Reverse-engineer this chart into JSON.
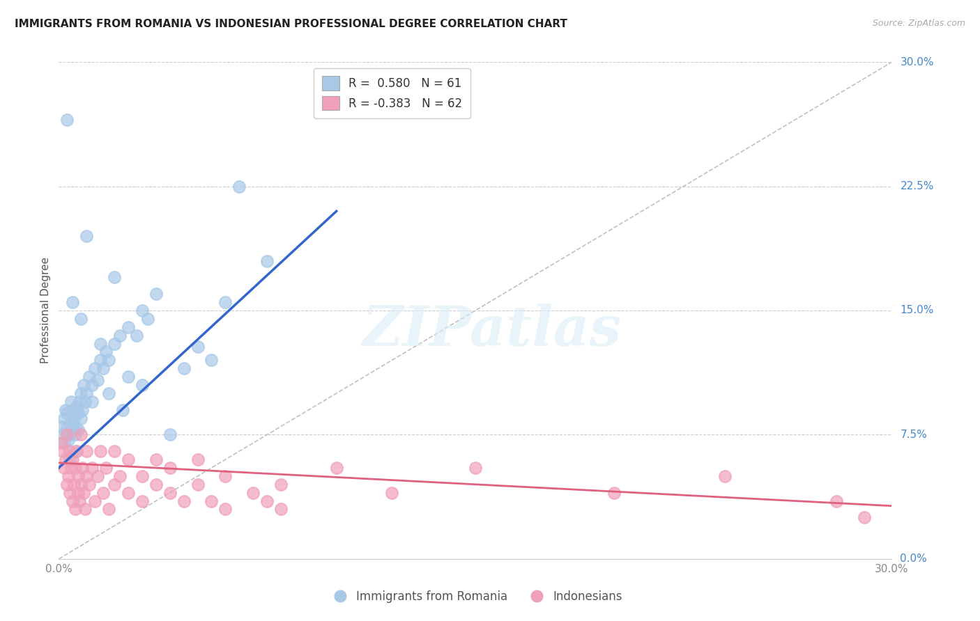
{
  "title": "IMMIGRANTS FROM ROMANIA VS INDONESIAN PROFESSIONAL DEGREE CORRELATION CHART",
  "source": "Source: ZipAtlas.com",
  "ylabel": "Professional Degree",
  "yticks_labels": [
    "0.0%",
    "7.5%",
    "15.0%",
    "22.5%",
    "30.0%"
  ],
  "ytick_vals": [
    0.0,
    7.5,
    15.0,
    22.5,
    30.0
  ],
  "xlim": [
    0.0,
    30.0
  ],
  "ylim": [
    0.0,
    30.0
  ],
  "romania_color": "#a8c8e8",
  "indonesia_color": "#f0a0b8",
  "romania_line_color": "#3366cc",
  "indonesia_line_color": "#e06080",
  "diagonal_color": "#c0c0c0",
  "watermark": "ZIPatlas",
  "romania_points": [
    [
      0.1,
      8.0
    ],
    [
      0.15,
      7.5
    ],
    [
      0.2,
      8.5
    ],
    [
      0.2,
      7.0
    ],
    [
      0.25,
      9.0
    ],
    [
      0.3,
      7.8
    ],
    [
      0.3,
      8.8
    ],
    [
      0.35,
      7.2
    ],
    [
      0.4,
      8.2
    ],
    [
      0.4,
      7.5
    ],
    [
      0.45,
      9.5
    ],
    [
      0.5,
      8.0
    ],
    [
      0.5,
      9.0
    ],
    [
      0.55,
      8.5
    ],
    [
      0.6,
      7.5
    ],
    [
      0.6,
      8.0
    ],
    [
      0.65,
      9.2
    ],
    [
      0.7,
      7.8
    ],
    [
      0.7,
      8.8
    ],
    [
      0.75,
      9.5
    ],
    [
      0.8,
      8.5
    ],
    [
      0.8,
      10.0
    ],
    [
      0.85,
      9.0
    ],
    [
      0.9,
      10.5
    ],
    [
      0.95,
      9.5
    ],
    [
      1.0,
      10.0
    ],
    [
      1.1,
      11.0
    ],
    [
      1.2,
      10.5
    ],
    [
      1.3,
      11.5
    ],
    [
      1.4,
      10.8
    ],
    [
      1.5,
      12.0
    ],
    [
      1.6,
      11.5
    ],
    [
      1.7,
      12.5
    ],
    [
      1.8,
      12.0
    ],
    [
      2.0,
      13.0
    ],
    [
      2.2,
      13.5
    ],
    [
      2.5,
      14.0
    ],
    [
      2.8,
      13.5
    ],
    [
      3.0,
      15.0
    ],
    [
      3.2,
      14.5
    ],
    [
      0.3,
      26.5
    ],
    [
      1.0,
      19.5
    ],
    [
      2.0,
      17.0
    ],
    [
      3.5,
      16.0
    ],
    [
      0.5,
      15.5
    ],
    [
      0.8,
      14.5
    ],
    [
      1.5,
      13.0
    ],
    [
      4.0,
      7.5
    ],
    [
      5.0,
      12.8
    ],
    [
      4.5,
      11.5
    ],
    [
      2.5,
      11.0
    ],
    [
      3.0,
      10.5
    ],
    [
      1.8,
      10.0
    ],
    [
      6.5,
      22.5
    ],
    [
      0.4,
      6.0
    ],
    [
      1.2,
      9.5
    ],
    [
      2.3,
      9.0
    ],
    [
      5.5,
      12.0
    ],
    [
      6.0,
      15.5
    ],
    [
      7.5,
      18.0
    ],
    [
      0.6,
      6.5
    ]
  ],
  "indonesia_points": [
    [
      0.1,
      7.0
    ],
    [
      0.15,
      6.5
    ],
    [
      0.2,
      5.5
    ],
    [
      0.25,
      6.0
    ],
    [
      0.3,
      4.5
    ],
    [
      0.3,
      7.5
    ],
    [
      0.35,
      5.0
    ],
    [
      0.4,
      6.5
    ],
    [
      0.4,
      4.0
    ],
    [
      0.45,
      5.5
    ],
    [
      0.5,
      6.0
    ],
    [
      0.5,
      3.5
    ],
    [
      0.55,
      4.5
    ],
    [
      0.6,
      5.5
    ],
    [
      0.6,
      3.0
    ],
    [
      0.65,
      6.5
    ],
    [
      0.7,
      4.0
    ],
    [
      0.7,
      5.0
    ],
    [
      0.75,
      3.5
    ],
    [
      0.8,
      4.5
    ],
    [
      0.8,
      7.5
    ],
    [
      0.85,
      5.5
    ],
    [
      0.9,
      4.0
    ],
    [
      0.95,
      3.0
    ],
    [
      1.0,
      5.0
    ],
    [
      1.0,
      6.5
    ],
    [
      1.1,
      4.5
    ],
    [
      1.2,
      5.5
    ],
    [
      1.3,
      3.5
    ],
    [
      1.4,
      5.0
    ],
    [
      1.5,
      6.5
    ],
    [
      1.6,
      4.0
    ],
    [
      1.7,
      5.5
    ],
    [
      1.8,
      3.0
    ],
    [
      2.0,
      4.5
    ],
    [
      2.0,
      6.5
    ],
    [
      2.2,
      5.0
    ],
    [
      2.5,
      4.0
    ],
    [
      2.5,
      6.0
    ],
    [
      3.0,
      5.0
    ],
    [
      3.0,
      3.5
    ],
    [
      3.5,
      4.5
    ],
    [
      3.5,
      6.0
    ],
    [
      4.0,
      4.0
    ],
    [
      4.0,
      5.5
    ],
    [
      4.5,
      3.5
    ],
    [
      5.0,
      4.5
    ],
    [
      5.0,
      6.0
    ],
    [
      5.5,
      3.5
    ],
    [
      6.0,
      5.0
    ],
    [
      6.0,
      3.0
    ],
    [
      7.0,
      4.0
    ],
    [
      7.5,
      3.5
    ],
    [
      8.0,
      4.5
    ],
    [
      8.0,
      3.0
    ],
    [
      10.0,
      5.5
    ],
    [
      12.0,
      4.0
    ],
    [
      15.0,
      5.5
    ],
    [
      20.0,
      4.0
    ],
    [
      24.0,
      5.0
    ],
    [
      28.0,
      3.5
    ],
    [
      29.0,
      2.5
    ]
  ],
  "romania_trendline": [
    [
      0.0,
      5.5
    ],
    [
      10.0,
      21.0
    ]
  ],
  "indonesia_trendline": [
    [
      0.0,
      5.8
    ],
    [
      30.0,
      3.2
    ]
  ],
  "diagonal_line": [
    [
      0.0,
      0.0
    ],
    [
      30.0,
      30.0
    ]
  ]
}
